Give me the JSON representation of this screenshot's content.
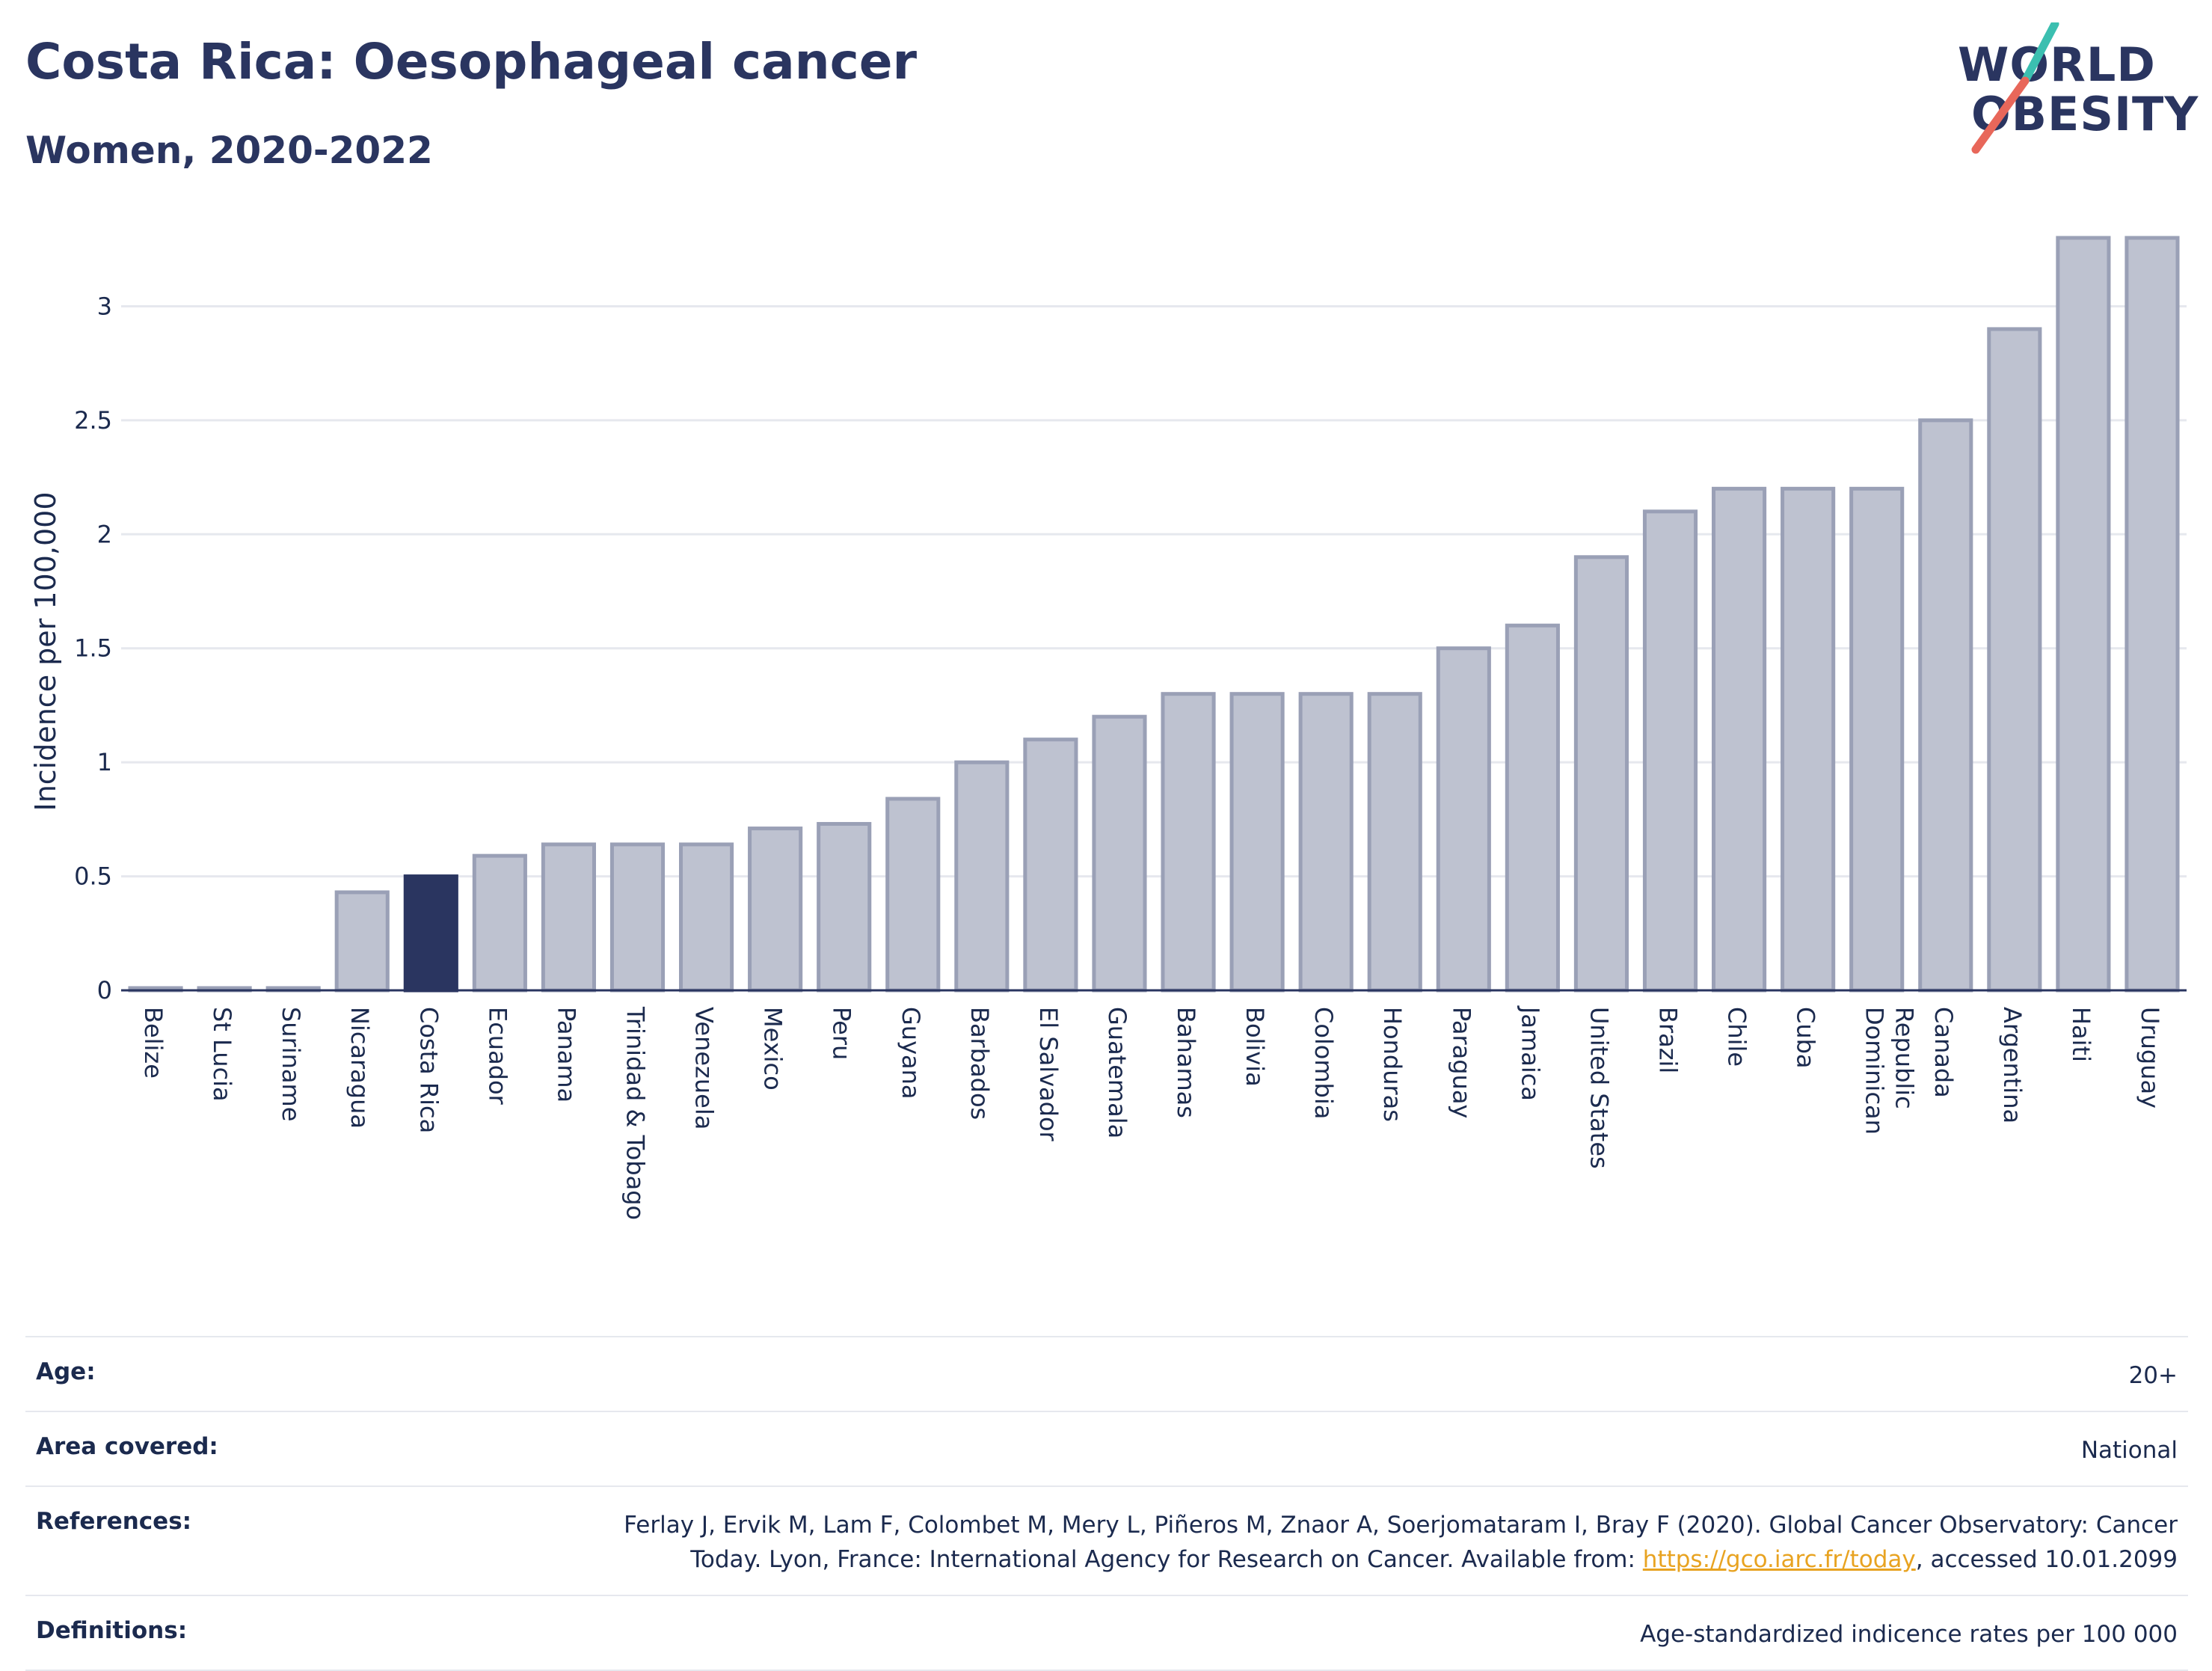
{
  "header": {
    "title": "Costa Rica: Oesophageal cancer",
    "subtitle": "Women, 2020-2022"
  },
  "logo": {
    "line1": "WORLD",
    "line2": "OBESITY",
    "text_color": "#2a3560",
    "slash_colors": [
      "#3bbfb0",
      "#e8675a"
    ]
  },
  "chart_data": {
    "type": "bar",
    "title": "Costa Rica: Oesophageal cancer",
    "subtitle": "Women, 2020-2022",
    "xlabel": "",
    "ylabel": "Incidence per 100,000",
    "ylim": [
      0,
      3.3
    ],
    "yticks": [
      0,
      0.5,
      1,
      1.5,
      2,
      2.5,
      3
    ],
    "ytick_labels": [
      "0",
      "0.5",
      "1",
      "1.5",
      "2",
      "2.5",
      "3"
    ],
    "grid": true,
    "highlight": "Costa Rica",
    "colors": {
      "bar": "#bec2d0",
      "bar_edge": "#9aa0b6",
      "highlight": "#2a3560",
      "grid": "#e6e8ee"
    },
    "categories": [
      "Belize",
      "St Lucia",
      "Suriname",
      "Nicaragua",
      "Costa Rica",
      "Ecuador",
      "Panama",
      "Trinidad & Tobago",
      "Venezuela",
      "Mexico",
      "Peru",
      "Guyana",
      "Barbados",
      "El Salvador",
      "Guatemala",
      "Bahamas",
      "Bolivia",
      "Colombia",
      "Honduras",
      "Paraguay",
      "Jamaica",
      "United States",
      "Brazil",
      "Chile",
      "Cuba",
      "Dominican Republic",
      "Canada",
      "Argentina",
      "Haiti",
      "Uruguay"
    ],
    "values": [
      0.01,
      0.01,
      0.01,
      0.43,
      0.5,
      0.59,
      0.64,
      0.64,
      0.64,
      0.71,
      0.73,
      0.84,
      1.0,
      1.1,
      1.2,
      1.3,
      1.3,
      1.3,
      1.3,
      1.5,
      1.6,
      1.9,
      2.1,
      2.2,
      2.2,
      2.2,
      2.5,
      2.9,
      3.3,
      3.3
    ]
  },
  "meta": {
    "age_label": "Age:",
    "age_value": "20+",
    "area_label": "Area covered:",
    "area_value": "National",
    "references_label": "References:",
    "references_text_1": "Ferlay J, Ervik M, Lam F, Colombet M, Mery L, Piñeros M, Znaor A, Soerjomataram I, Bray F (2020). Global Cancer Observatory: Cancer",
    "references_text_2": "Today. Lyon, France: International Agency for Research on Cancer. Available from: ",
    "references_link": "https://gco.iarc.fr/today",
    "references_text_3": ", accessed 10.01.2099",
    "definitions_label": "Definitions:",
    "definitions_value": "Age-standardized indicence rates per 100 000"
  }
}
